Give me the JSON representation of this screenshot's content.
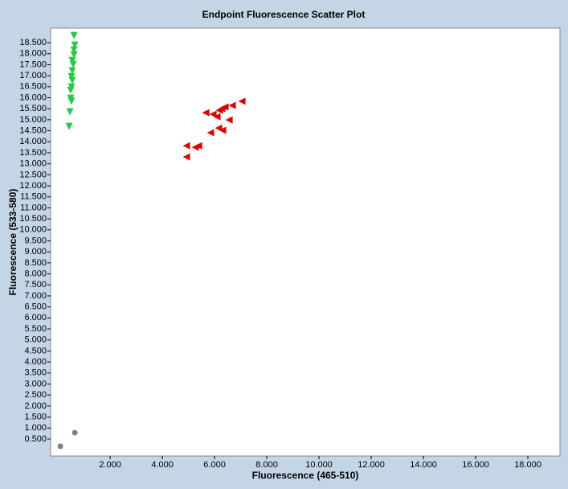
{
  "chart_data": {
    "type": "scatter",
    "title": "Endpoint Fluorescence Scatter Plot",
    "x_label": "Fluorescence (465-510)",
    "y_label": "Fluorescence (533-580)",
    "xlim": [
      -280,
      19230
    ],
    "ylim": [
      -270,
      19160
    ],
    "xticks": [
      {
        "value": 2000,
        "label": "2.000"
      },
      {
        "value": 4000,
        "label": "4.000"
      },
      {
        "value": 6000,
        "label": "6.000"
      },
      {
        "value": 8000,
        "label": "8.000"
      },
      {
        "value": 10000,
        "label": "10.000"
      },
      {
        "value": 12000,
        "label": "12.000"
      },
      {
        "value": 14000,
        "label": "14.000"
      },
      {
        "value": 16000,
        "label": "16.000"
      },
      {
        "value": 18000,
        "label": "18.000"
      }
    ],
    "yticks": [
      {
        "value": 500,
        "label": "0.500"
      },
      {
        "value": 1000,
        "label": "1.000"
      },
      {
        "value": 1500,
        "label": "1.500"
      },
      {
        "value": 2000,
        "label": "2.000"
      },
      {
        "value": 2500,
        "label": "2.500"
      },
      {
        "value": 3000,
        "label": "3.000"
      },
      {
        "value": 3500,
        "label": "3.500"
      },
      {
        "value": 4000,
        "label": "4.000"
      },
      {
        "value": 4500,
        "label": "4.500"
      },
      {
        "value": 5000,
        "label": "5.000"
      },
      {
        "value": 5500,
        "label": "5.500"
      },
      {
        "value": 6000,
        "label": "6.000"
      },
      {
        "value": 6500,
        "label": "6.500"
      },
      {
        "value": 7000,
        "label": "7.000"
      },
      {
        "value": 7500,
        "label": "7.500"
      },
      {
        "value": 8000,
        "label": "8.000"
      },
      {
        "value": 8500,
        "label": "8.500"
      },
      {
        "value": 9000,
        "label": "9.000"
      },
      {
        "value": 9500,
        "label": "9.500"
      },
      {
        "value": 10000,
        "label": "10.000"
      },
      {
        "value": 10500,
        "label": "10.500"
      },
      {
        "value": 11000,
        "label": "11.000"
      },
      {
        "value": 11500,
        "label": "11.500"
      },
      {
        "value": 12000,
        "label": "12.000"
      },
      {
        "value": 12500,
        "label": "12.500"
      },
      {
        "value": 13000,
        "label": "13.000"
      },
      {
        "value": 13500,
        "label": "13.500"
      },
      {
        "value": 14000,
        "label": "14.000"
      },
      {
        "value": 14500,
        "label": "14.500"
      },
      {
        "value": 15000,
        "label": "15.000"
      },
      {
        "value": 15500,
        "label": "15.500"
      },
      {
        "value": 16000,
        "label": "16.000"
      },
      {
        "value": 16500,
        "label": "16.500"
      },
      {
        "value": 17000,
        "label": "17.000"
      },
      {
        "value": 17500,
        "label": "17.500"
      },
      {
        "value": 18000,
        "label": "18.000"
      },
      {
        "value": 18500,
        "label": "18.500"
      }
    ],
    "grid": false,
    "series": [
      {
        "color": "#808080",
        "marker": "circle",
        "x": [
          92,
          646
        ],
        "values": [
          172,
          789
        ]
      },
      {
        "color": "#22cc44",
        "marker": "triangle-down",
        "x": [
          615,
          646,
          615,
          615,
          550,
          585,
          550,
          520,
          550,
          520,
          490,
          490,
          520,
          460,
          430
        ],
        "values": [
          18828,
          18390,
          18170,
          17950,
          17690,
          17510,
          17220,
          16960,
          16780,
          16490,
          16340,
          15980,
          15840,
          15360,
          14700
        ]
      },
      {
        "color": "#e00000",
        "marker": "triangle-left",
        "x": [
          7046,
          6677,
          6400,
          6277,
          6185,
          6554,
          6092,
          5938,
          5662,
          6154,
          6308,
          5846,
          5385,
          5262,
          4923,
          4923
        ],
        "values": [
          15840,
          15650,
          15580,
          15510,
          15430,
          14990,
          15140,
          15250,
          15320,
          14620,
          14520,
          14410,
          13820,
          13750,
          13820,
          13310
        ]
      }
    ]
  }
}
